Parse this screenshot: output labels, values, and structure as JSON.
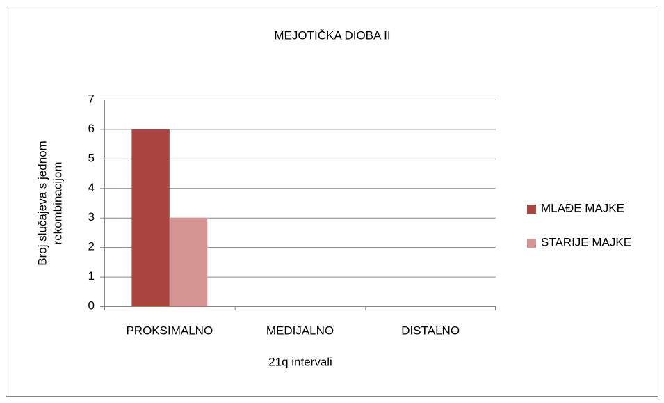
{
  "chart_data": {
    "type": "bar",
    "title": "MEJOTIČKA DIOBA II",
    "ylabel": [
      "Broj slučajeva s jednom",
      "rekombinacijom"
    ],
    "xlabel": "21q intervali",
    "categories": [
      "PROKSIMALNO",
      "MEDIJALNO",
      "DISTALNO"
    ],
    "series": [
      {
        "name": "MLAĐE MAJKE",
        "color": "#a9443f",
        "values": [
          6,
          0,
          0
        ]
      },
      {
        "name": "STARIJE MAJKE",
        "color": "#d59593",
        "values": [
          3,
          0,
          0
        ]
      }
    ],
    "ylim": [
      0,
      7
    ],
    "yticks": [
      0,
      1,
      2,
      3,
      4,
      5,
      6,
      7
    ],
    "grid": true,
    "legend": "right"
  }
}
